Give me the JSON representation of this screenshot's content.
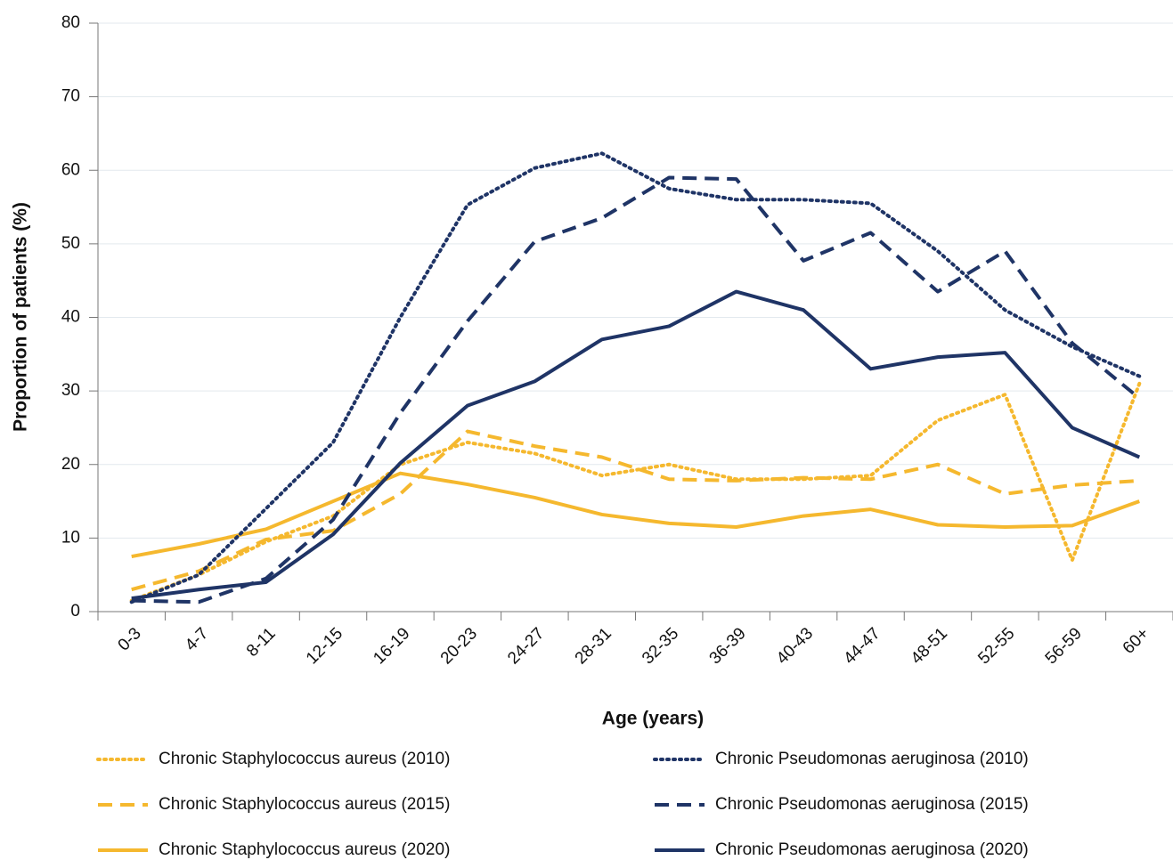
{
  "chart_data": {
    "type": "line",
    "x_label": "Age (years)",
    "y_label": "Proportion of patients (%)",
    "categories": [
      "0-3",
      "4-7",
      "8-11",
      "12-15",
      "16-19",
      "20-23",
      "24-27",
      "28-31",
      "32-35",
      "36-39",
      "40-43",
      "44-47",
      "48-51",
      "52-55",
      "56-59",
      "60+"
    ],
    "ylim": [
      0,
      80
    ],
    "yticks": [
      0,
      10,
      20,
      30,
      40,
      50,
      60,
      70,
      80
    ],
    "grid": true,
    "series": [
      {
        "name": "Chronic Staphylococcus aureus (2010)",
        "color": "#f5b82e",
        "dash": "dotted",
        "values": [
          1.5,
          5,
          9.5,
          13,
          20,
          23,
          21.5,
          18.5,
          20,
          18,
          18,
          18.5,
          26,
          29.5,
          7,
          31
        ]
      },
      {
        "name": "Chronic Staphylococcus aureus (2015)",
        "color": "#f5b82e",
        "dash": "dashed",
        "values": [
          3,
          5.5,
          9.8,
          11,
          16,
          24.5,
          22.5,
          21,
          18,
          17.8,
          18.2,
          18,
          20,
          16,
          17.2,
          17.8
        ]
      },
      {
        "name": "Chronic Staphylococcus aureus (2020)",
        "color": "#f5b82e",
        "dash": "solid",
        "values": [
          7.5,
          9.2,
          11.2,
          15,
          18.8,
          17.3,
          15.5,
          13.2,
          12,
          11.5,
          13,
          13.9,
          11.8,
          11.5,
          11.7,
          15
        ]
      },
      {
        "name": "Chronic Pseudomonas aeruginosa (2010)",
        "color": "#1f3466",
        "dash": "dotted",
        "values": [
          1.3,
          5,
          14,
          23,
          40,
          55.3,
          60.3,
          62.3,
          57.5,
          56,
          56,
          55.5,
          49,
          41,
          36,
          32
        ]
      },
      {
        "name": "Chronic Pseudomonas aeruginosa (2015)",
        "color": "#1f3466",
        "dash": "dashed",
        "values": [
          1.5,
          1.3,
          4.5,
          12.5,
          27,
          39.5,
          50.3,
          53.5,
          59,
          58.8,
          47.7,
          51.5,
          43.5,
          49,
          36.5,
          29
        ]
      },
      {
        "name": "Chronic Pseudomonas aeruginosa (2020)",
        "color": "#1f3466",
        "dash": "solid",
        "values": [
          1.8,
          3,
          4,
          10.5,
          20.2,
          28,
          31.3,
          37,
          38.8,
          43.5,
          41,
          33,
          34.6,
          35.2,
          25,
          21
        ]
      }
    ]
  }
}
